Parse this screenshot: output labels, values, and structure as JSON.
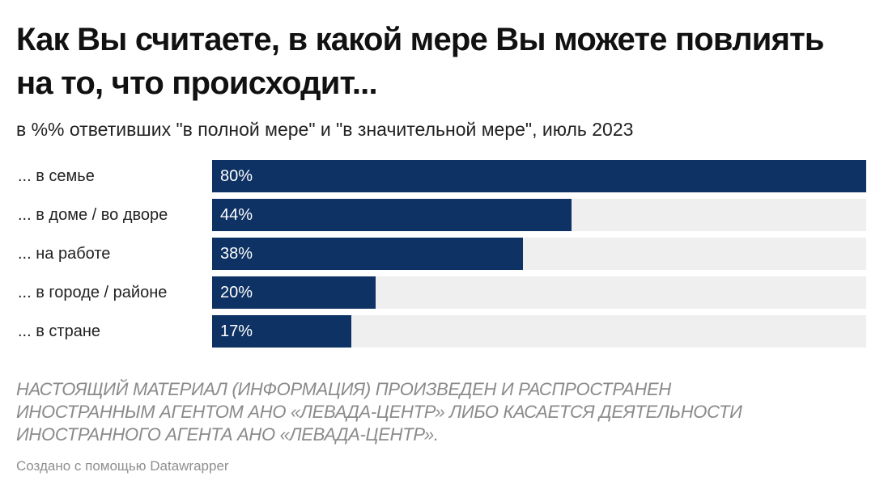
{
  "header": {
    "title": "Как Вы считаете, в какой мере Вы можете повлиять на то, что происходит...",
    "subtitle": "в %% ответивших \"в полной мере\" и \"в значительной мере\", июль 2023"
  },
  "chart_data": {
    "type": "bar",
    "orientation": "horizontal",
    "title": "Как Вы считаете, в какой мере Вы можете повлиять на то, что происходит...",
    "subtitle": "в %% ответивших \"в полной мере\" и \"в значительной мере\", июль 2023",
    "categories": [
      "... в семье",
      "... в доме / во дворе",
      "... на работе",
      "... в городе / районе",
      "... в стране"
    ],
    "values": [
      80,
      44,
      38,
      20,
      17
    ],
    "value_labels": [
      "80%",
      "44%",
      "38%",
      "20%",
      "17%"
    ],
    "xlim": [
      0,
      80
    ],
    "xlabel": "",
    "ylabel": "",
    "grid": false,
    "legend": "none",
    "bar_color": "#0d3263",
    "track_color": "#efefef"
  },
  "footer": {
    "notice_lines": [
      "НАСТОЯЩИЙ МАТЕРИАЛ (ИНФОРМАЦИЯ) ПРОИЗВЕДЕН И РАСПРОСТРАНЕН",
      "ИНОСТРАННЫМ АГЕНТОМ АНО «ЛЕВАДА-ЦЕНТР» ЛИБО КАСАЕТСЯ ДЕЯТЕЛЬНОСТИ",
      "ИНОСТРАННОГО АГЕНТА АНО «ЛЕВАДА-ЦЕНТР»."
    ],
    "credit": "Создано с помощью Datawrapper"
  }
}
